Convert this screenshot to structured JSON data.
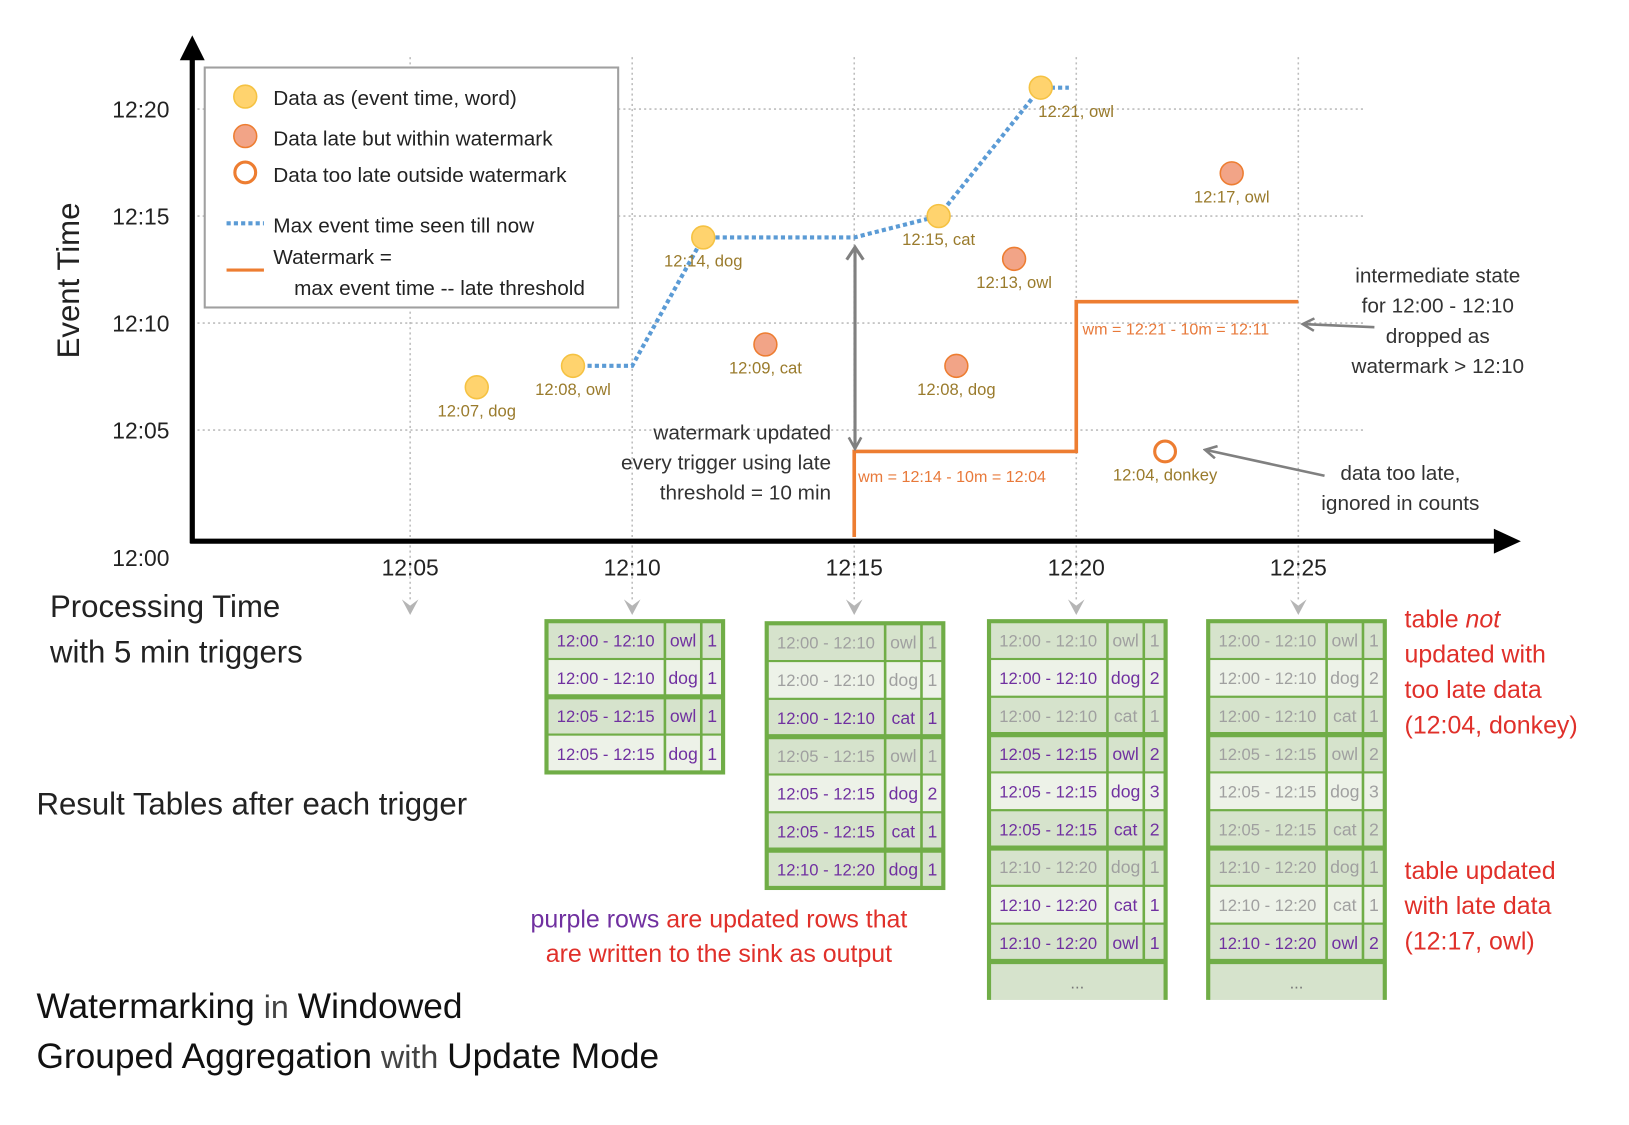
{
  "chart_data": {
    "type": "scatter",
    "ylabel": "Event Time",
    "xlabel": [
      "Processing Time",
      "with 5 min triggers"
    ],
    "x_ticks": [
      "12:05",
      "12:10",
      "12:15",
      "12:20",
      "12:25"
    ],
    "y_ticks": [
      "12:00",
      "12:05",
      "12:10",
      "12:15",
      "12:20"
    ],
    "grid": true,
    "colors": {
      "on_time": "#ffd36e",
      "late": "#f2a487",
      "too_late": "#ed7d31",
      "max_line": "#5b9bd5",
      "watermark": "#ed7d31",
      "label": "#9a7b2c"
    },
    "legend": {
      "placement": "top-left",
      "items": [
        {
          "label": "Data as (event time, word)",
          "kind": "on_time"
        },
        {
          "label": "Data late but within watermark",
          "kind": "late"
        },
        {
          "label": "Data too late outside watermark",
          "kind": "too_late"
        },
        {
          "label": "Max event time seen till now",
          "kind": "max_line"
        },
        {
          "label": "Watermark =",
          "label2": "max event time -- late threshold",
          "kind": "watermark"
        }
      ]
    },
    "points": [
      {
        "processing_time": "12:06:30",
        "event_time": "12:07",
        "word": "dog",
        "kind": "on_time",
        "label": "12:07, dog"
      },
      {
        "processing_time": "12:08:40",
        "event_time": "12:08",
        "word": "owl",
        "kind": "on_time",
        "label": "12:08, owl"
      },
      {
        "processing_time": "12:11:36",
        "event_time": "12:14",
        "word": "dog",
        "kind": "on_time",
        "label": "12:14, dog"
      },
      {
        "processing_time": "12:13:00",
        "event_time": "12:09",
        "word": "cat",
        "kind": "late",
        "label": "12:09, cat"
      },
      {
        "processing_time": "12:16:54",
        "event_time": "12:15",
        "word": "cat",
        "kind": "on_time",
        "label": "12:15, cat"
      },
      {
        "processing_time": "12:17:18",
        "event_time": "12:08",
        "word": "dog",
        "kind": "late",
        "label": "12:08, dog"
      },
      {
        "processing_time": "12:18:36",
        "event_time": "12:13",
        "word": "owl",
        "kind": "late",
        "label": "12:13, owl"
      },
      {
        "processing_time": "12:19:12",
        "event_time": "12:21",
        "word": "owl",
        "kind": "on_time",
        "label": "12:21, owl"
      },
      {
        "processing_time": "12:22:00",
        "event_time": "12:04",
        "word": "donkey",
        "kind": "too_late",
        "label": "12:04, donkey"
      },
      {
        "processing_time": "12:23:30",
        "event_time": "12:17",
        "word": "owl",
        "kind": "late",
        "label": "12:17, owl"
      }
    ],
    "max_event_time": [
      [
        "12:08:40",
        "12:08"
      ],
      [
        "12:10:00",
        "12:08"
      ],
      [
        "12:11:36",
        "12:14"
      ],
      [
        "12:15:00",
        "12:14"
      ],
      [
        "12:16:54",
        "12:15"
      ],
      [
        "12:19:12",
        "12:21"
      ],
      [
        "12:19:50",
        "12:21"
      ]
    ],
    "watermark": [
      [
        "12:15:00",
        "12:00"
      ],
      [
        "12:15:00",
        "12:04"
      ],
      [
        "12:20:00",
        "12:04"
      ],
      [
        "12:20:00",
        "12:11"
      ],
      [
        "12:25:00",
        "12:11"
      ]
    ],
    "watermark_labels": [
      "wm = 12:14 - 10m = 12:04",
      "wm = 12:21 - 10m = 12:11"
    ]
  },
  "annotations": {
    "wm_updated": [
      "watermark updated",
      "every trigger using late",
      "threshold = 10 min"
    ],
    "intermediate": [
      "intermediate state",
      "for 12:00 - 12:10",
      "dropped as",
      "watermark > 12:10"
    ],
    "too_late": [
      "data too late,",
      "ignored in counts"
    ],
    "not_updated": {
      "pre": "table ",
      "em": "not",
      "lines": [
        "updated with",
        "too late data",
        "(12:04, donkey)"
      ]
    },
    "updated": [
      "table updated",
      "with late data",
      "(12:17, owl)"
    ],
    "purple_note": {
      "purple": "purple rows",
      "rest1": " are updated rows that",
      "line2": "are written to the sink as output"
    },
    "result_tables_label": "Result Tables after each trigger",
    "title": {
      "w1": "Watermarking",
      "w2": " in ",
      "w3": "Windowed",
      "w4": "Grouped Aggregation",
      "w5": " with ",
      "w6": "Update Mode"
    }
  },
  "tables": [
    {
      "trigger": "12:10",
      "ellipsis": "",
      "rows": [
        {
          "window": "12:00 - 12:10",
          "word": "owl",
          "count": "1",
          "updated": true
        },
        {
          "window": "12:00 - 12:10",
          "word": "dog",
          "count": "1",
          "updated": true
        },
        {
          "window": "12:05 - 12:15",
          "word": "owl",
          "count": "1",
          "updated": true
        },
        {
          "window": "12:05 - 12:15",
          "word": "dog",
          "count": "1",
          "updated": true
        }
      ]
    },
    {
      "trigger": "12:15",
      "ellipsis": "",
      "rows": [
        {
          "window": "12:00 - 12:10",
          "word": "owl",
          "count": "1",
          "updated": false
        },
        {
          "window": "12:00 - 12:10",
          "word": "dog",
          "count": "1",
          "updated": false
        },
        {
          "window": "12:00 - 12:10",
          "word": "cat",
          "count": "1",
          "updated": true
        },
        {
          "window": "12:05 - 12:15",
          "word": "owl",
          "count": "1",
          "updated": false
        },
        {
          "window": "12:05 - 12:15",
          "word": "dog",
          "count": "2",
          "updated": true
        },
        {
          "window": "12:05 - 12:15",
          "word": "cat",
          "count": "1",
          "updated": true
        },
        {
          "window": "12:10 - 12:20",
          "word": "dog",
          "count": "1",
          "updated": true
        }
      ]
    },
    {
      "trigger": "12:20",
      "ellipsis": "...",
      "rows": [
        {
          "window": "12:00 - 12:10",
          "word": "owl",
          "count": "1",
          "updated": false
        },
        {
          "window": "12:00 - 12:10",
          "word": "dog",
          "count": "2",
          "updated": true
        },
        {
          "window": "12:00 - 12:10",
          "word": "cat",
          "count": "1",
          "updated": false
        },
        {
          "window": "12:05 - 12:15",
          "word": "owl",
          "count": "2",
          "updated": true
        },
        {
          "window": "12:05 - 12:15",
          "word": "dog",
          "count": "3",
          "updated": true
        },
        {
          "window": "12:05 - 12:15",
          "word": "cat",
          "count": "2",
          "updated": true
        },
        {
          "window": "12:10 - 12:20",
          "word": "dog",
          "count": "1",
          "updated": false
        },
        {
          "window": "12:10 - 12:20",
          "word": "cat",
          "count": "1",
          "updated": true
        },
        {
          "window": "12:10 - 12:20",
          "word": "owl",
          "count": "1",
          "updated": true
        }
      ]
    },
    {
      "trigger": "12:25",
      "ellipsis": "...",
      "rows": [
        {
          "window": "12:00 - 12:10",
          "word": "owl",
          "count": "1",
          "updated": false
        },
        {
          "window": "12:00 - 12:10",
          "word": "dog",
          "count": "2",
          "updated": false
        },
        {
          "window": "12:00 - 12:10",
          "word": "cat",
          "count": "1",
          "updated": false
        },
        {
          "window": "12:05 - 12:15",
          "word": "owl",
          "count": "2",
          "updated": false
        },
        {
          "window": "12:05 - 12:15",
          "word": "dog",
          "count": "3",
          "updated": false
        },
        {
          "window": "12:05 - 12:15",
          "word": "cat",
          "count": "2",
          "updated": false
        },
        {
          "window": "12:10 - 12:20",
          "word": "dog",
          "count": "1",
          "updated": false
        },
        {
          "window": "12:10 - 12:20",
          "word": "cat",
          "count": "1",
          "updated": false
        },
        {
          "window": "12:10 - 12:20",
          "word": "owl",
          "count": "2",
          "updated": true
        }
      ]
    }
  ],
  "table_colors": {
    "border": "#70ad47",
    "row_dark": "#d6e3cc",
    "row_light": "#edf2e8",
    "updated_text": "#7030a0",
    "stale_text": "#a0a0a0"
  }
}
